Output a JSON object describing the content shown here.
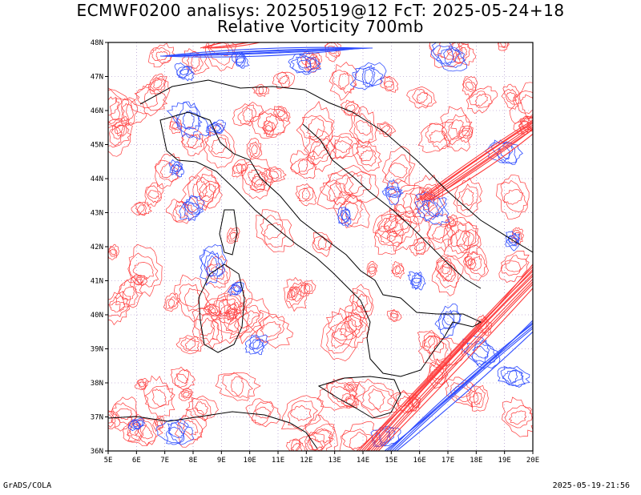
{
  "title": {
    "line1": "ECMWF0200 analisys: 20250519@12 FcT: 2025-05-24+18",
    "line2": "Relative Vorticity 700mb"
  },
  "footer": {
    "left": "GrADS/COLA",
    "right": "2025-05-19-21:56"
  },
  "map": {
    "lon_range": [
      5,
      20
    ],
    "lat_range": [
      36,
      48
    ],
    "lon_ticks": [
      "5E",
      "6E",
      "7E",
      "8E",
      "9E",
      "10E",
      "11E",
      "12E",
      "13E",
      "14E",
      "15E",
      "16E",
      "17E",
      "18E",
      "19E",
      "20E"
    ],
    "lat_ticks": [
      "36N",
      "37N",
      "38N",
      "39N",
      "40N",
      "41N",
      "42N",
      "43N",
      "44N",
      "45N",
      "46N",
      "47N",
      "48N"
    ],
    "colors": {
      "positive_contour": "#ff3b3b",
      "negative_contour": "#2f4dff",
      "coastline": "#000000",
      "grid": "#9a7fbf"
    }
  }
}
